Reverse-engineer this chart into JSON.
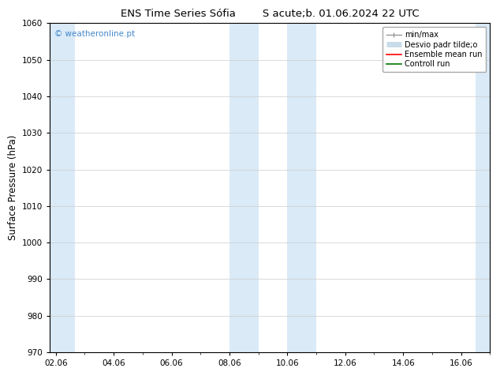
{
  "title_left": "ENS Time Series Sófia",
  "title_right": "S acute;b. 01.06.2024 22 UTC",
  "ylabel": "Surface Pressure (hPa)",
  "ylim": [
    970,
    1060
  ],
  "yticks": [
    970,
    980,
    990,
    1000,
    1010,
    1020,
    1030,
    1040,
    1050,
    1060
  ],
  "x_labels": [
    "02.06",
    "04.06",
    "06.06",
    "08.06",
    "10.06",
    "12.06",
    "14.06",
    "16.06"
  ],
  "x_positions": [
    0,
    2,
    4,
    6,
    8,
    10,
    12,
    14
  ],
  "xlim": [
    -0.2,
    15.0
  ],
  "background_color": "#ffffff",
  "plot_bg_color": "#ffffff",
  "shaded_bands": [
    {
      "x_start": -0.2,
      "x_end": 0.65,
      "color": "#daeaf7"
    },
    {
      "x_start": 6.0,
      "x_end": 7.0,
      "color": "#daeaf7"
    },
    {
      "x_start": 8.0,
      "x_end": 9.0,
      "color": "#daeaf7"
    },
    {
      "x_start": 14.5,
      "x_end": 15.0,
      "color": "#daeaf7"
    }
  ],
  "watermark_text": "© weatheronline.pt",
  "watermark_color": "#4488cc",
  "legend_items": [
    {
      "label": "min/max",
      "color": "#999999",
      "lw": 1.0
    },
    {
      "label": "Desvio padr tilde;o",
      "color": "#c8dcea",
      "lw": 5
    },
    {
      "label": "Ensemble mean run",
      "color": "#ff0000",
      "lw": 1.2
    },
    {
      "label": "Controll run",
      "color": "#007700",
      "lw": 1.2
    }
  ],
  "title_fontsize": 9.5,
  "tick_fontsize": 7.5,
  "ylabel_fontsize": 8.5,
  "watermark_fontsize": 7.5,
  "legend_fontsize": 7.0
}
